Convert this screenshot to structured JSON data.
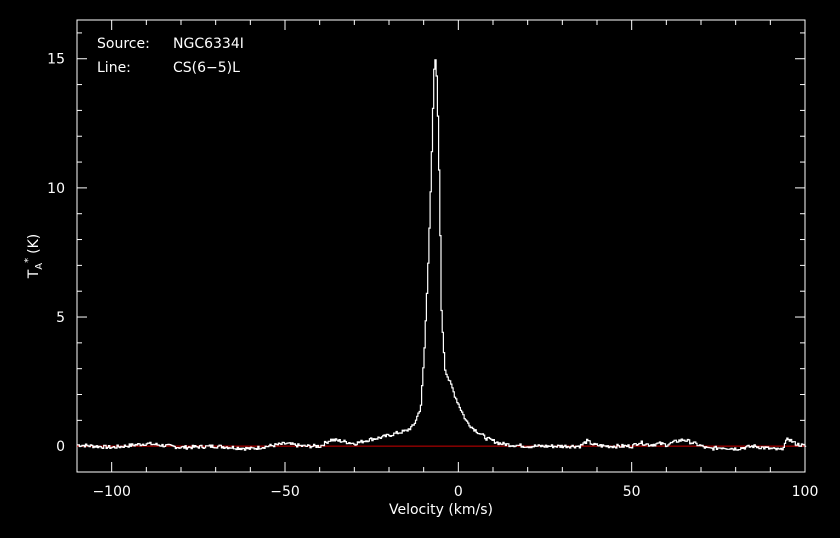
{
  "chart_data": {
    "type": "line",
    "source_label": "Source:",
    "source_value": "NGC6334I",
    "line_label": "Line:",
    "line_value": "CS(6−5)L",
    "xlabel": "Velocity (km/s)",
    "ylabel_main": "T",
    "ylabel_sub": "A",
    "ylabel_sup": "*",
    "ylabel_unit": "(K)",
    "xlim": [
      -110,
      100
    ],
    "ylim": [
      -1,
      16.5
    ],
    "xticks": [
      -100,
      -50,
      0,
      50,
      100
    ],
    "xtick_labels": [
      "−100",
      "−50",
      "0",
      "50",
      "100"
    ],
    "yticks": [
      0,
      5,
      10,
      15
    ],
    "ytick_labels": [
      "0",
      "5",
      "10",
      "15"
    ],
    "grid": false,
    "series": [
      {
        "color": "#ffffff",
        "x": [
          -110,
          -100,
          -90,
          -80,
          -70,
          -60,
          -50,
          -45,
          -40,
          -37,
          -34,
          -30,
          -26,
          -22,
          -18,
          -15,
          -13,
          -11,
          -10,
          -9,
          -8,
          -7.5,
          -7,
          -6.5,
          -6,
          -5.5,
          -5,
          -4,
          -3,
          -2,
          -1,
          0,
          1,
          2,
          4,
          6,
          8,
          10,
          12,
          15,
          20,
          25,
          30,
          35,
          37,
          39,
          42,
          46,
          50,
          52,
          55,
          58,
          60,
          63,
          65,
          68,
          72,
          76,
          80,
          85,
          90,
          93,
          95,
          97,
          100
        ],
        "y": [
          0.05,
          -0.05,
          0.1,
          -0.05,
          0.0,
          -0.1,
          0.1,
          0.0,
          0.0,
          0.25,
          0.2,
          0.1,
          0.25,
          0.35,
          0.5,
          0.6,
          0.8,
          1.5,
          3.5,
          6.5,
          10.5,
          12.8,
          15.0,
          14.8,
          12.5,
          9.5,
          5.2,
          3.0,
          2.6,
          2.3,
          1.9,
          1.6,
          1.3,
          1.0,
          0.7,
          0.5,
          0.3,
          0.2,
          0.1,
          0.05,
          0.0,
          0.0,
          0.0,
          0.0,
          0.2,
          0.05,
          0.0,
          0.0,
          0.0,
          0.15,
          0.05,
          0.1,
          0.05,
          0.2,
          0.25,
          0.1,
          -0.1,
          -0.05,
          -0.1,
          0.0,
          -0.1,
          -0.15,
          0.3,
          0.1,
          0.0
        ]
      }
    ],
    "baseline": {
      "y": 0,
      "color": "#cc0000"
    }
  }
}
